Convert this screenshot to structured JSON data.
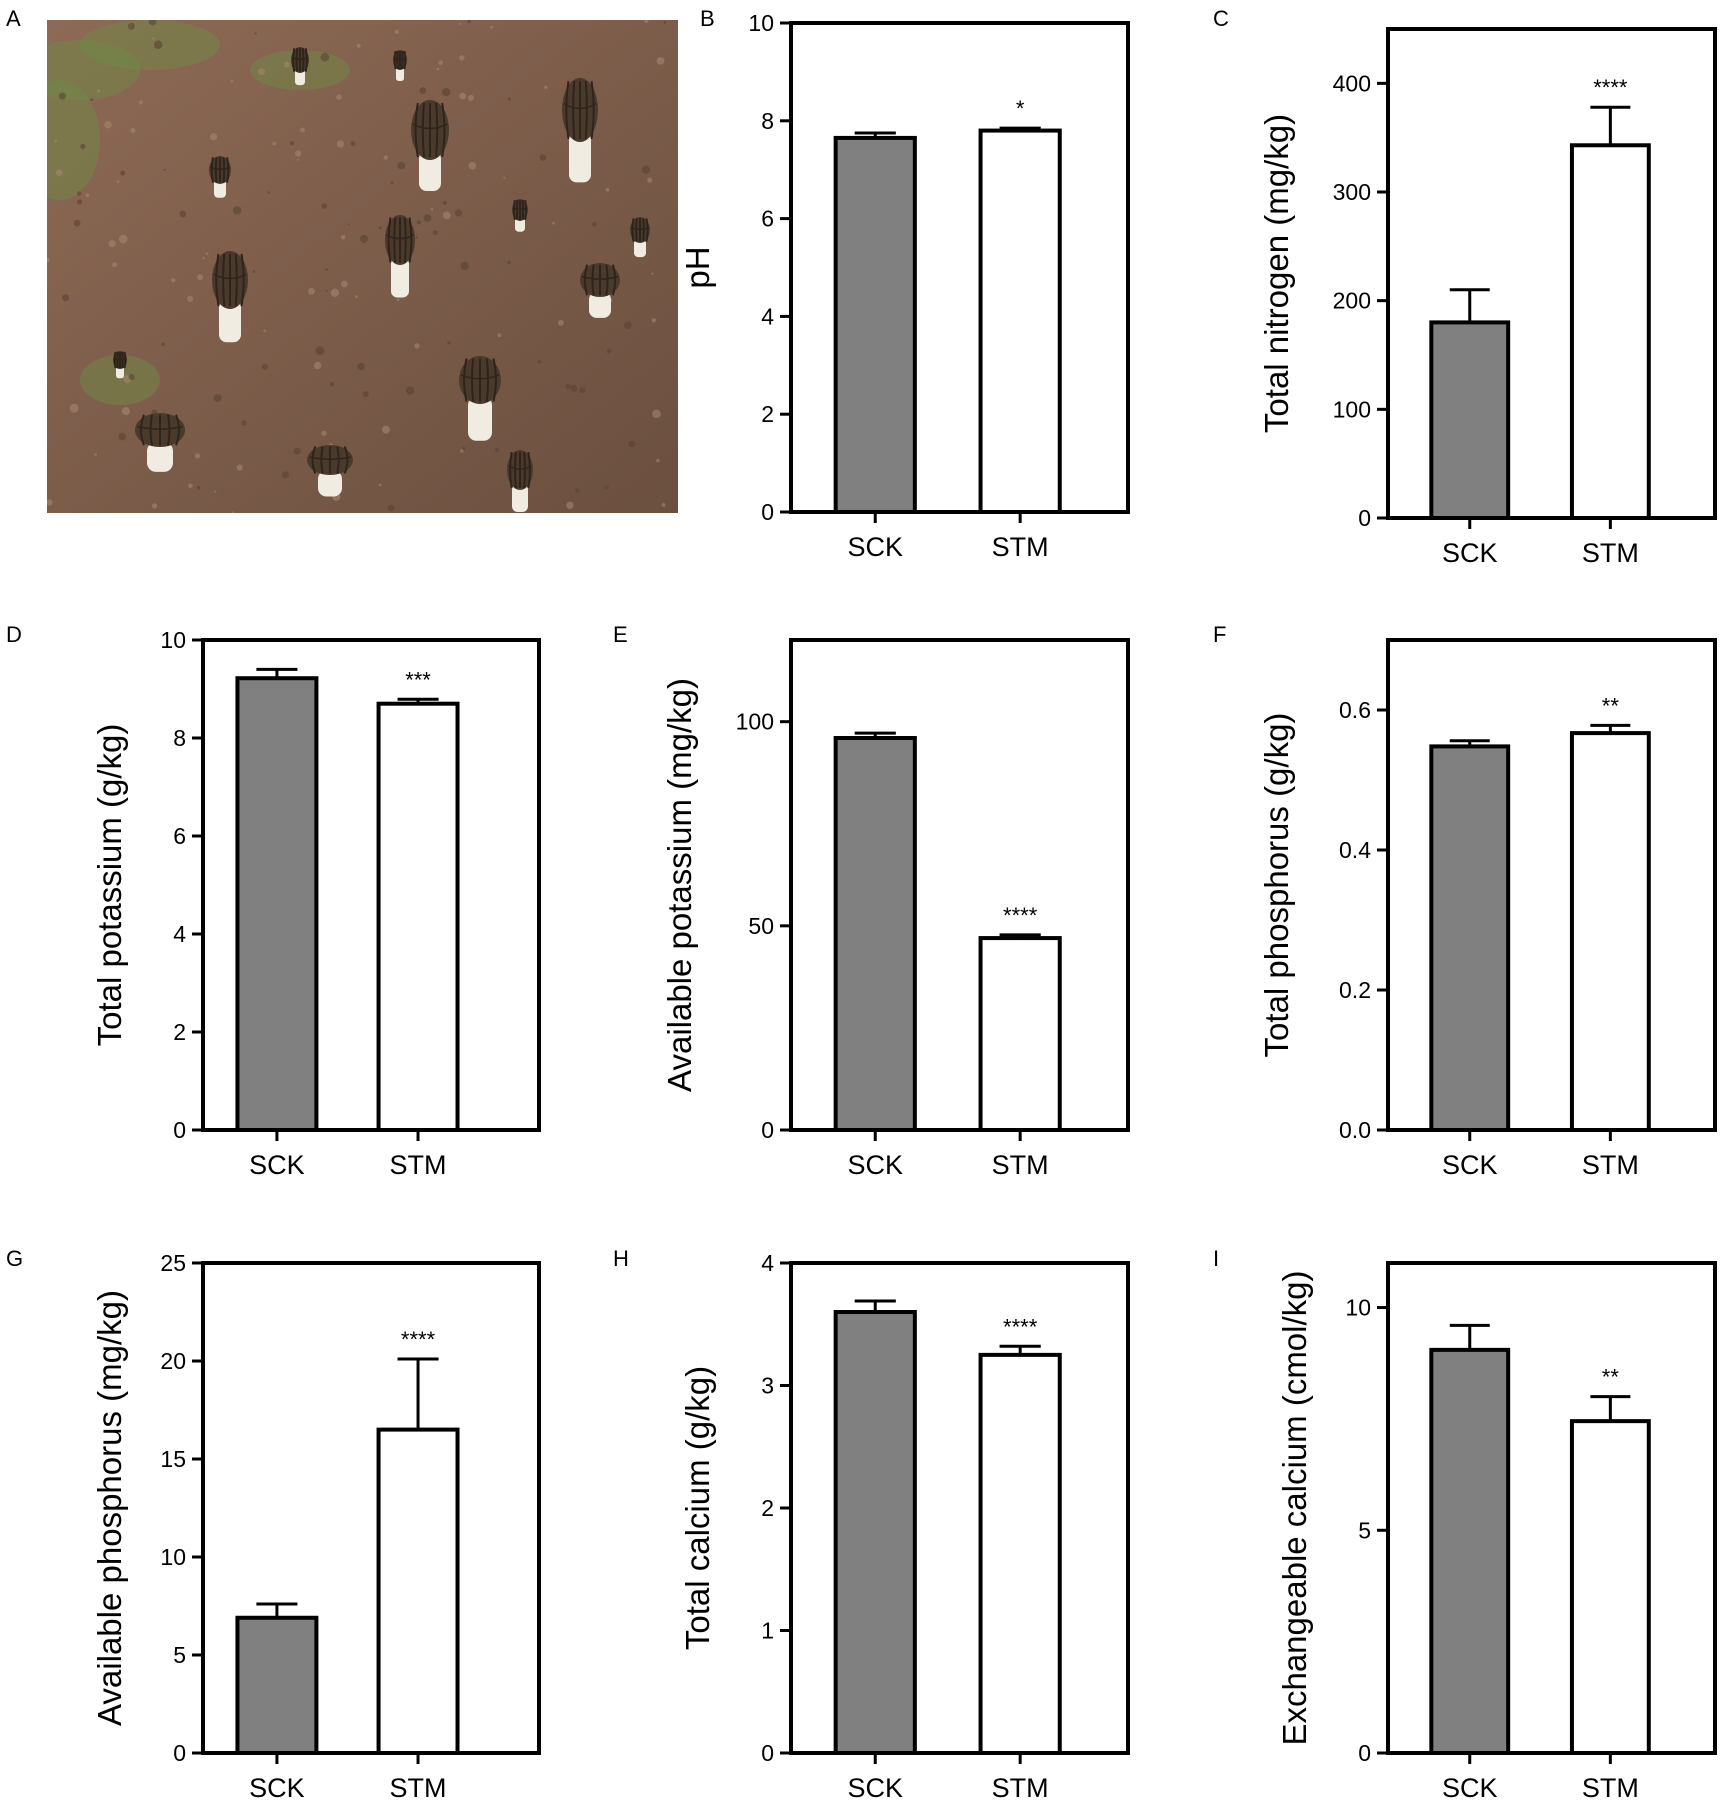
{
  "figure": {
    "panel_a": {
      "letter": "A",
      "image_subject": "morel mushrooms growing on soil",
      "colors": {
        "soil": "#8d6a55",
        "soil_dark": "#6b4f3f",
        "moss": "#6f8a45",
        "cap": "#4a3a2c",
        "cap_ridge": "#2e241b",
        "stem": "#f1ece1"
      }
    },
    "colors": {
      "sck_bar": "#808080",
      "stm_bar": "#ffffff",
      "stroke": "#000000"
    }
  },
  "chart_data": [
    {
      "panel": "B",
      "type": "bar",
      "ylabel": "pH",
      "categories": [
        "SCK",
        "STM"
      ],
      "values": [
        7.65,
        7.8
      ],
      "errors": [
        0.1,
        0.05
      ],
      "significance": [
        "",
        "*"
      ],
      "ylim": [
        0,
        10
      ],
      "yticks": [
        "0",
        "2",
        "4",
        "6",
        "8",
        "10"
      ]
    },
    {
      "panel": "C",
      "type": "bar",
      "ylabel": "Total nitrogen (mg/kg)",
      "categories": [
        "SCK",
        "STM"
      ],
      "values": [
        180,
        343
      ],
      "errors": [
        30,
        35
      ],
      "significance": [
        "",
        "****"
      ],
      "ylim": [
        0,
        450
      ],
      "yticks": [
        "0",
        "100",
        "200",
        "300",
        "400"
      ]
    },
    {
      "panel": "D",
      "type": "bar",
      "ylabel": "Total potassium (g/kg)",
      "categories": [
        "SCK",
        "STM"
      ],
      "values": [
        9.22,
        8.7
      ],
      "errors": [
        0.18,
        0.09
      ],
      "significance": [
        "",
        "***"
      ],
      "ylim": [
        0,
        10
      ],
      "yticks": [
        "0",
        "2",
        "4",
        "6",
        "8",
        "10"
      ]
    },
    {
      "panel": "E",
      "type": "bar",
      "ylabel": "Available potassium (mg/kg)",
      "categories": [
        "SCK",
        "STM"
      ],
      "values": [
        96,
        47
      ],
      "errors": [
        1.2,
        0.8
      ],
      "significance": [
        "",
        "****"
      ],
      "ylim": [
        0,
        120
      ],
      "yticks": [
        "0",
        "50",
        "100"
      ]
    },
    {
      "panel": "F",
      "type": "bar",
      "ylabel": "Total phosphorus (g/kg)",
      "categories": [
        "SCK",
        "STM"
      ],
      "values": [
        0.548,
        0.567
      ],
      "errors": [
        0.008,
        0.011
      ],
      "significance": [
        "",
        "**"
      ],
      "ylim": [
        0,
        0.7
      ],
      "yticks": [
        "0.0",
        "0.2",
        "0.4",
        "0.6"
      ]
    },
    {
      "panel": "G",
      "type": "bar",
      "ylabel": "Available phosphorus (mg/kg)",
      "categories": [
        "SCK",
        "STM"
      ],
      "values": [
        6.9,
        16.5
      ],
      "errors": [
        0.7,
        3.6
      ],
      "significance": [
        "",
        "****"
      ],
      "ylim": [
        0,
        25
      ],
      "yticks": [
        "0",
        "5",
        "10",
        "15",
        "20",
        "25"
      ]
    },
    {
      "panel": "H",
      "type": "bar",
      "ylabel": "Total calcium (g/kg)",
      "categories": [
        "SCK",
        "STM"
      ],
      "values": [
        3.6,
        3.25
      ],
      "errors": [
        0.09,
        0.07
      ],
      "significance": [
        "",
        "****"
      ],
      "ylim": [
        0,
        4
      ],
      "yticks": [
        "0",
        "1",
        "2",
        "3",
        "4"
      ]
    },
    {
      "panel": "I",
      "type": "bar",
      "ylabel": "Exchangeable calcium (cmol/kg)",
      "categories": [
        "SCK",
        "STM"
      ],
      "values": [
        9.05,
        7.45
      ],
      "errors": [
        0.55,
        0.55
      ],
      "significance": [
        "",
        "**"
      ],
      "ylim": [
        0,
        11
      ],
      "yticks": [
        "0",
        "5",
        "10"
      ]
    }
  ]
}
